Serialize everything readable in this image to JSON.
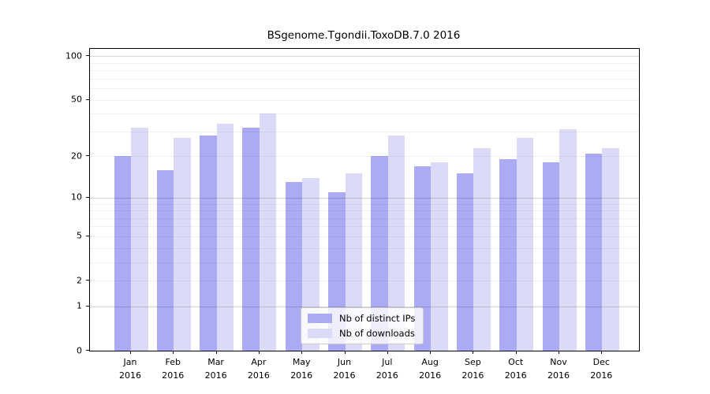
{
  "chart_data": {
    "type": "bar",
    "title": "BSgenome.Tgondii.ToxoDB.7.0 2016",
    "categories": [
      "Jan",
      "Feb",
      "Mar",
      "Apr",
      "May",
      "Jun",
      "Jul",
      "Aug",
      "Sep",
      "Oct",
      "Nov",
      "Dec"
    ],
    "year": "2016",
    "series": [
      {
        "name": "Nb of distinct IPs",
        "color": "#ababf5",
        "values": [
          20,
          16,
          28,
          32,
          13,
          11,
          20,
          17,
          15,
          19,
          18,
          21
        ]
      },
      {
        "name": "Nb of downloads",
        "color": "#dbdbf8",
        "values": [
          32,
          27,
          34,
          40,
          14,
          15,
          28,
          18,
          23,
          27,
          31,
          23
        ]
      }
    ],
    "y_axis": {
      "scale": "log1p",
      "ticks": [
        0,
        1,
        2,
        5,
        10,
        20,
        50,
        100
      ],
      "minor_gridlines": [
        2,
        3,
        4,
        5,
        6,
        7,
        8,
        9,
        20,
        30,
        40,
        50,
        60,
        70,
        80,
        90
      ],
      "major_gridlines": [
        1,
        10,
        100
      ],
      "top_value": 112,
      "ylim": [
        0,
        112
      ]
    },
    "grid": true,
    "legend_position": "lower center-right",
    "colors": {
      "axis": "#000000",
      "major_grid": "rgba(0,0,0,0.16)",
      "minor_grid": "rgba(0,0,0,0.055)"
    }
  }
}
